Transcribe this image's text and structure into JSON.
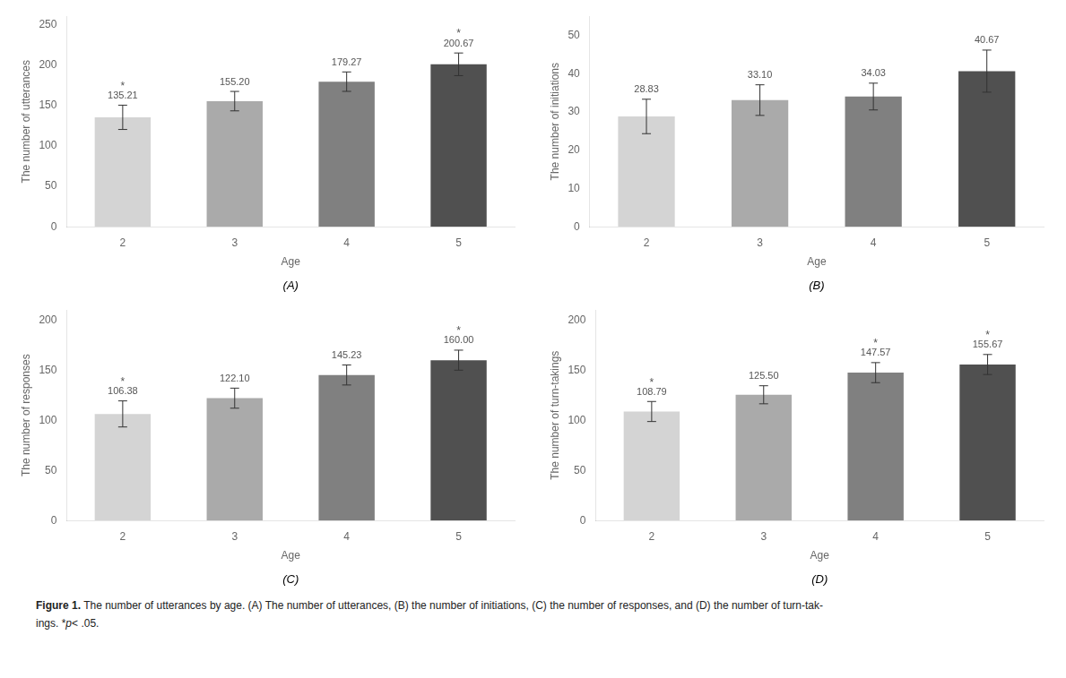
{
  "chart_data": [
    {
      "type": "bar",
      "xlabel": "Age",
      "ylabel": "The number of utterances",
      "categories": [
        "2",
        "3",
        "4",
        "5"
      ],
      "values": [
        135.21,
        155.2,
        179.27,
        200.67
      ],
      "value_labels": [
        "135.21",
        "155.20",
        "179.27",
        "200.67"
      ],
      "errors": [
        15,
        12,
        12,
        14
      ],
      "colors": [
        "#d4d4d4",
        "#aaaaaa",
        "#808080",
        "#505050"
      ],
      "ylim": [
        0,
        260
      ],
      "yticks": [
        0,
        50,
        100,
        150,
        200,
        250
      ],
      "grid": false,
      "data_labels": true,
      "annotations": [
        {
          "text": "(A)"
        },
        {
          "text": "*",
          "category": "2"
        },
        {
          "text": "*",
          "category": "5"
        }
      ]
    },
    {
      "type": "bar",
      "xlabel": "Age",
      "ylabel": "The number of initiations",
      "categories": [
        "2",
        "3",
        "4",
        "5"
      ],
      "values": [
        28.83,
        33.1,
        34.03,
        40.67
      ],
      "value_labels": [
        "28.83",
        "33.10",
        "34.03",
        "40.67"
      ],
      "errors": [
        4.5,
        4.0,
        3.5,
        5.5
      ],
      "colors": [
        "#d4d4d4",
        "#aaaaaa",
        "#808080",
        "#505050"
      ],
      "ylim": [
        0,
        55
      ],
      "yticks": [
        0,
        10,
        20,
        30,
        40,
        50
      ],
      "grid": false,
      "data_labels": true,
      "annotations": [
        {
          "text": "(B)"
        }
      ]
    },
    {
      "type": "bar",
      "xlabel": "Age",
      "ylabel": "The number of responses",
      "categories": [
        "2",
        "3",
        "4",
        "5"
      ],
      "values": [
        106.38,
        122.1,
        145.23,
        160.0
      ],
      "value_labels": [
        "106.38",
        "122.10",
        "145.23",
        "160.00"
      ],
      "errors": [
        13,
        10,
        10,
        10
      ],
      "colors": [
        "#d4d4d4",
        "#aaaaaa",
        "#808080",
        "#505050"
      ],
      "ylim": [
        0,
        210
      ],
      "yticks": [
        0,
        50,
        100,
        150,
        200
      ],
      "grid": false,
      "data_labels": true,
      "annotations": [
        {
          "text": "(C)"
        },
        {
          "text": "*",
          "category": "2"
        },
        {
          "text": "*",
          "category": "5"
        }
      ]
    },
    {
      "type": "bar",
      "xlabel": "Age",
      "ylabel": "The number of turn-takings",
      "categories": [
        "2",
        "3",
        "4",
        "5"
      ],
      "values": [
        108.79,
        125.5,
        147.57,
        155.67
      ],
      "value_labels": [
        "108.79",
        "125.50",
        "147.57",
        "155.67"
      ],
      "errors": [
        10,
        9,
        10,
        10
      ],
      "colors": [
        "#d4d4d4",
        "#aaaaaa",
        "#808080",
        "#505050"
      ],
      "ylim": [
        0,
        210
      ],
      "yticks": [
        0,
        50,
        100,
        150,
        200
      ],
      "grid": false,
      "data_labels": true,
      "annotations": [
        {
          "text": "(D)"
        },
        {
          "text": "*",
          "category": "2"
        },
        {
          "text": "*",
          "category": "4"
        },
        {
          "text": "*",
          "category": "5"
        }
      ]
    }
  ],
  "caption": [
    [
      {
        "text": "Figure 1.",
        "weight": "bold"
      },
      {
        "text": " The number of utterances by age. (A) The number of utterances, (B) the number of initiations, (C) the number of responses, and (D) the number of turn-tak-"
      }
    ],
    [
      {
        "text": "ings. *"
      },
      {
        "text": "p",
        "style": "italic"
      },
      {
        "text": "< .05."
      }
    ]
  ]
}
